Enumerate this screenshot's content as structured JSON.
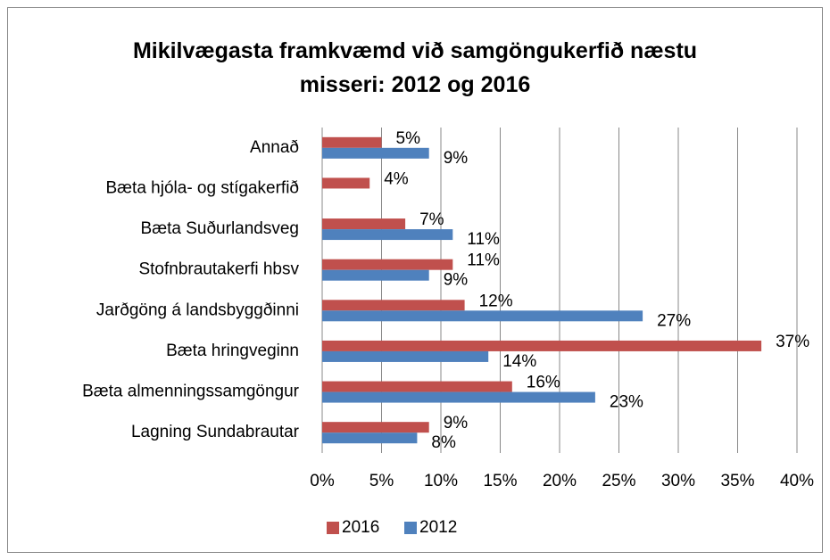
{
  "chart_data": {
    "type": "bar",
    "orientation": "horizontal",
    "title": "Mikilvægasta framkvæmd við samgöngukerfið næstu misseri: 2012 og 2016",
    "categories": [
      "Annað",
      "Bæta hjóla- og stígakerfið",
      "Bæta Suðurlandsveg",
      "Stofnbrautakerfi hbsv",
      "Jarðgöng á landsbyggðinni",
      "Bæta hringveginn",
      "Bæta almenningssamgöngur",
      "Lagning Sundabrautar"
    ],
    "series": [
      {
        "name": "2016",
        "color": "#c0504d",
        "values": [
          5,
          4,
          7,
          11,
          12,
          37,
          16,
          9
        ],
        "value_labels": [
          "5%",
          "4%",
          "7%",
          "11%",
          "12%",
          "37%",
          "16%",
          "9%"
        ]
      },
      {
        "name": "2012",
        "color": "#4f81bd",
        "values": [
          9,
          null,
          11,
          9,
          27,
          14,
          23,
          8
        ],
        "value_labels": [
          "9%",
          null,
          "11%",
          "9%",
          "27%",
          "14%",
          "23%",
          "8%"
        ]
      }
    ],
    "xlim": [
      0,
      40
    ],
    "xticks": [
      {
        "value": 0,
        "label": "0%"
      },
      {
        "value": 5,
        "label": "5%"
      },
      {
        "value": 10,
        "label": "10%"
      },
      {
        "value": 15,
        "label": "15%"
      },
      {
        "value": 20,
        "label": "20%"
      },
      {
        "value": 25,
        "label": "25%"
      },
      {
        "value": 30,
        "label": "30%"
      },
      {
        "value": 35,
        "label": "35%"
      },
      {
        "value": 40,
        "label": "40%"
      }
    ],
    "grid": true,
    "legend": "bottom"
  }
}
